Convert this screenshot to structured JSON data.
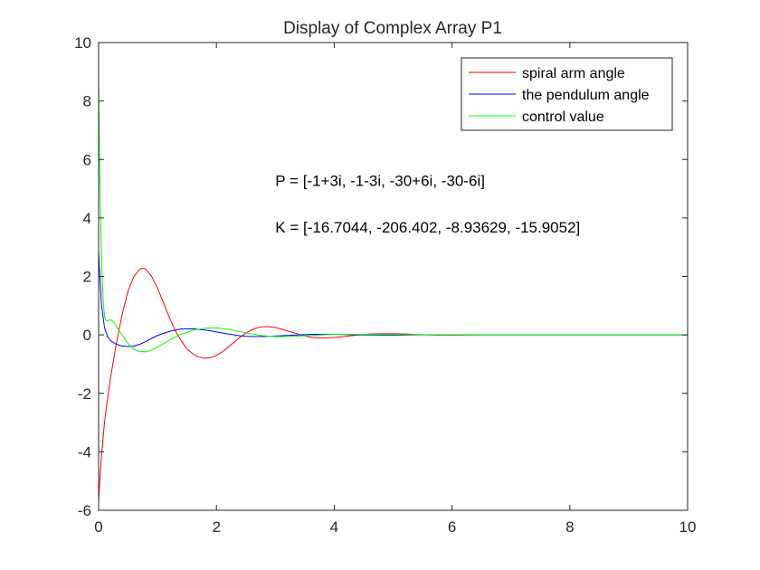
{
  "chart_data": {
    "type": "line",
    "title": "Display of Complex Array P1",
    "xlabel": "",
    "ylabel": "",
    "xlim": [
      0,
      10
    ],
    "ylim": [
      -6,
      10
    ],
    "x_ticks": [
      "0",
      "2",
      "4",
      "6",
      "8",
      "10"
    ],
    "y_ticks": [
      "-6",
      "-4",
      "-2",
      "0",
      "2",
      "4",
      "6",
      "8",
      "10"
    ],
    "x_tick_values": [
      0,
      2,
      4,
      6,
      8,
      10
    ],
    "y_tick_values": [
      -6,
      -4,
      -2,
      0,
      2,
      4,
      6,
      8,
      10
    ],
    "grid": false,
    "legend_position": "top-right",
    "annotations": [
      {
        "text": "P = [-1+3i, -1-3i, -30+6i, -30-6i]",
        "x": 3.0,
        "y": 5.1
      },
      {
        "text": "K = [-16.7044, -206.402, -8.93629, -15.9052]",
        "x": 3.0,
        "y": 3.5
      }
    ],
    "series": [
      {
        "name": "spiral arm angle",
        "color": "#ff0000",
        "x": [
          0,
          0.02,
          0.05,
          0.1,
          0.15,
          0.2,
          0.3,
          0.4,
          0.5,
          0.6,
          0.7,
          0.75,
          0.8,
          0.9,
          1.0,
          1.1,
          1.2,
          1.3,
          1.4,
          1.5,
          1.6,
          1.7,
          1.8,
          1.9,
          2.0,
          2.1,
          2.2,
          2.3,
          2.4,
          2.5,
          2.6,
          2.7,
          2.8,
          2.9,
          3.0,
          3.1,
          3.2,
          3.4,
          3.6,
          3.8,
          4.0,
          4.2,
          4.4,
          4.6,
          4.8,
          5.0,
          5.2,
          5.4,
          5.6,
          5.8,
          6.0,
          6.5,
          7.0,
          8.0,
          9.0,
          10.0
        ],
        "values": [
          -5.7,
          -5.0,
          -4.1,
          -3.0,
          -2.2,
          -1.5,
          -0.3,
          0.7,
          1.5,
          2.0,
          2.25,
          2.28,
          2.25,
          2.0,
          1.6,
          1.1,
          0.6,
          0.15,
          -0.2,
          -0.48,
          -0.65,
          -0.76,
          -0.8,
          -0.78,
          -0.7,
          -0.58,
          -0.42,
          -0.25,
          -0.08,
          0.06,
          0.17,
          0.25,
          0.28,
          0.28,
          0.25,
          0.2,
          0.14,
          0.02,
          -0.08,
          -0.11,
          -0.09,
          -0.05,
          0.0,
          0.03,
          0.04,
          0.04,
          0.03,
          0.01,
          0.0,
          -0.01,
          -0.01,
          0.0,
          0.0,
          0.0,
          0.0,
          0.0
        ]
      },
      {
        "name": "the pendulum angle",
        "color": "#0000ff",
        "x": [
          0,
          0.02,
          0.05,
          0.1,
          0.15,
          0.2,
          0.3,
          0.4,
          0.5,
          0.6,
          0.7,
          0.8,
          0.9,
          1.0,
          1.2,
          1.4,
          1.6,
          1.8,
          2.0,
          2.2,
          2.4,
          2.6,
          2.8,
          3.0,
          3.2,
          3.4,
          3.6,
          3.8,
          4.0,
          4.5,
          5.0,
          5.5,
          6.0,
          7.0,
          8.0,
          9.0,
          10.0
        ],
        "values": [
          2.9,
          2.0,
          1.0,
          0.25,
          -0.05,
          -0.2,
          -0.32,
          -0.38,
          -0.4,
          -0.38,
          -0.32,
          -0.23,
          -0.12,
          -0.02,
          0.12,
          0.2,
          0.21,
          0.17,
          0.1,
          0.03,
          -0.03,
          -0.06,
          -0.06,
          -0.04,
          -0.02,
          0.0,
          0.02,
          0.02,
          0.02,
          0.0,
          -0.01,
          0.0,
          0.0,
          0.0,
          0.0,
          0.0,
          0.0
        ]
      },
      {
        "name": "control value",
        "color": "#00ff00",
        "x": [
          0,
          0.01,
          0.02,
          0.04,
          0.06,
          0.08,
          0.1,
          0.12,
          0.15,
          0.2,
          0.25,
          0.3,
          0.4,
          0.5,
          0.6,
          0.7,
          0.8,
          0.9,
          1.0,
          1.1,
          1.2,
          1.4,
          1.6,
          1.8,
          2.0,
          2.2,
          2.4,
          2.6,
          2.8,
          3.0,
          3.2,
          3.4,
          3.6,
          3.8,
          4.0,
          4.5,
          5.0,
          5.5,
          6.0,
          7.0,
          8.0,
          9.0,
          10.0
        ],
        "values": [
          8.6,
          7.0,
          5.6,
          3.4,
          2.0,
          1.1,
          0.65,
          0.5,
          0.48,
          0.52,
          0.45,
          0.3,
          0.0,
          -0.3,
          -0.5,
          -0.57,
          -0.58,
          -0.52,
          -0.42,
          -0.3,
          -0.18,
          0.02,
          0.16,
          0.23,
          0.24,
          0.19,
          0.11,
          0.03,
          -0.03,
          -0.06,
          -0.06,
          -0.04,
          -0.02,
          0.0,
          0.02,
          0.02,
          0.01,
          0.0,
          0.0,
          0.0,
          0.0,
          0.0,
          0.0
        ]
      }
    ]
  }
}
